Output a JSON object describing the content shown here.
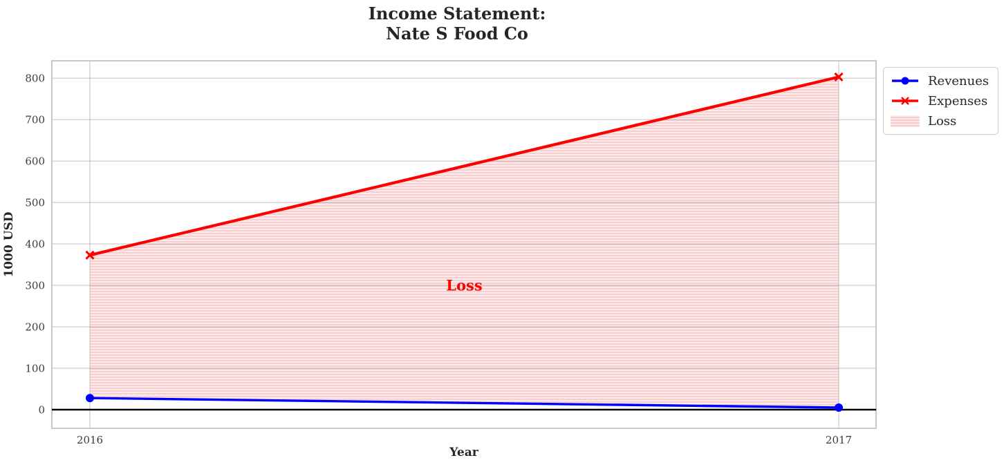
{
  "chart_data": {
    "type": "line",
    "title": "Income Statement:\nNate S Food Co",
    "xlabel": "Year",
    "ylabel": "1000 USD",
    "categories": [
      "2016",
      "2017"
    ],
    "series": [
      {
        "name": "Revenues",
        "values": [
          28,
          5
        ],
        "color": "#0000ff",
        "marker": "circle",
        "linewidth": 3.4
      },
      {
        "name": "Expenses",
        "values": [
          373,
          803
        ],
        "color": "#ff0000",
        "marker": "x",
        "linewidth": 4.2
      }
    ],
    "loss_area": {
      "label": "Loss",
      "between": [
        "Expenses",
        "Revenues"
      ],
      "fill_base": "#fdeaea",
      "hatch_color": "#f8caca",
      "annotation": {
        "text": "Loss",
        "color": "#ff0000",
        "x_fraction": 0.5,
        "y_value": 300
      }
    },
    "yticks": [
      0,
      100,
      200,
      300,
      400,
      500,
      600,
      700,
      800
    ],
    "ylim": [
      -45,
      842
    ],
    "grid": true,
    "zero_line": {
      "show": true,
      "color": "#000000"
    },
    "legend_position": "upper right outside",
    "colors": {
      "frame": "#c8c8c8",
      "grid": "#8c8c8c",
      "tick_text": "#3b3b3b",
      "label_text": "#262626"
    }
  },
  "legend": {
    "entries": [
      {
        "label": "Revenues",
        "swatch": "blue-line-circle"
      },
      {
        "label": "Expenses",
        "swatch": "red-line-x"
      },
      {
        "label": "Loss",
        "swatch": "pink-hatch-patch"
      }
    ]
  }
}
